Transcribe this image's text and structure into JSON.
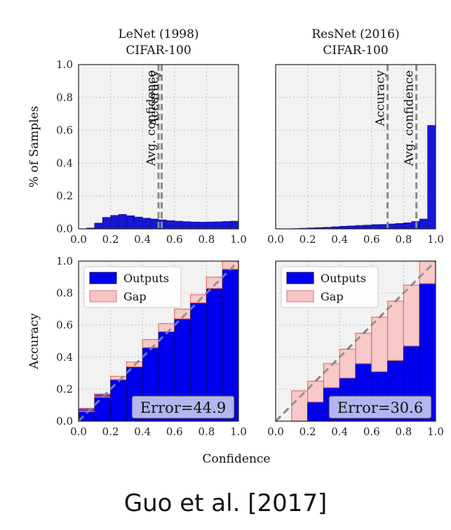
{
  "citation": "Guo et al. [2017]",
  "colors": {
    "outputs": "#0000ee",
    "gap_fill": "#f7c4c4",
    "gap_edge": "#e66e6e",
    "overlap": "#7e3fc0",
    "hist": "#1717d6",
    "diagonal": "#8a8a8a",
    "panel_bg": "#f2f2f2",
    "error_box": "#c8c8f0"
  },
  "chart_data": [
    {
      "type": "bar",
      "panel": "lenet-hist",
      "title": [
        "LeNet (1998)",
        "CIFAR-100"
      ],
      "ylabel": "% of Samples",
      "xlim": [
        0,
        1
      ],
      "ylim": [
        0,
        1
      ],
      "xticks": [
        "0.0",
        "0.2",
        "0.4",
        "0.6",
        "0.8",
        "1.0"
      ],
      "yticks": [
        "0.0",
        "0.2",
        "0.4",
        "0.6",
        "0.8",
        "1.0"
      ],
      "grid": true,
      "bin_width": 0.05,
      "bin_left_edges": [
        0.05,
        0.1,
        0.15,
        0.2,
        0.25,
        0.3,
        0.35,
        0.4,
        0.45,
        0.5,
        0.55,
        0.6,
        0.65,
        0.7,
        0.75,
        0.8,
        0.85,
        0.9,
        0.95
      ],
      "values": [
        0.005,
        0.035,
        0.07,
        0.082,
        0.088,
        0.08,
        0.072,
        0.065,
        0.06,
        0.055,
        0.05,
        0.047,
        0.044,
        0.042,
        0.041,
        0.042,
        0.043,
        0.045,
        0.047
      ],
      "reference_lines": [
        {
          "label": "Avg. confidence",
          "x": 0.5
        },
        {
          "label": "Accuracy",
          "x": 0.52
        }
      ]
    },
    {
      "type": "bar",
      "panel": "resnet-hist",
      "title": [
        "ResNet (2016)",
        "CIFAR-100"
      ],
      "xlim": [
        0,
        1
      ],
      "ylim": [
        0,
        1
      ],
      "xticks": [
        "0.0",
        "0.2",
        "0.4",
        "0.6",
        "0.8",
        "1.0"
      ],
      "grid": true,
      "bin_width": 0.05,
      "bin_left_edges": [
        0.1,
        0.15,
        0.2,
        0.25,
        0.3,
        0.35,
        0.4,
        0.45,
        0.5,
        0.55,
        0.6,
        0.65,
        0.7,
        0.75,
        0.8,
        0.85,
        0.9,
        0.95
      ],
      "values": [
        0.002,
        0.004,
        0.006,
        0.008,
        0.01,
        0.013,
        0.016,
        0.018,
        0.021,
        0.023,
        0.026,
        0.027,
        0.03,
        0.033,
        0.037,
        0.045,
        0.06,
        0.63
      ],
      "reference_lines": [
        {
          "label": "Accuracy",
          "x": 0.7
        },
        {
          "label": "Avg. confidence",
          "x": 0.88
        }
      ]
    },
    {
      "type": "bar",
      "panel": "lenet-reliability",
      "ylabel": "Accuracy",
      "xlim": [
        0,
        1
      ],
      "ylim": [
        0,
        1
      ],
      "xticks": [
        "0.0",
        "0.2",
        "0.4",
        "0.6",
        "0.8",
        "1.0"
      ],
      "yticks": [
        "0.0",
        "0.2",
        "0.4",
        "0.6",
        "0.8",
        "1.0"
      ],
      "grid": true,
      "legend": {
        "position": "top-left",
        "entries": [
          "Outputs",
          "Gap"
        ]
      },
      "bin_width": 0.1,
      "bin_left_edges": [
        0.0,
        0.1,
        0.2,
        0.3,
        0.4,
        0.5,
        0.6,
        0.7,
        0.8,
        0.9
      ],
      "outputs": [
        0.08,
        0.17,
        0.26,
        0.34,
        0.46,
        0.56,
        0.64,
        0.74,
        0.83,
        0.95
      ],
      "gap_top": [
        0.06,
        0.15,
        0.28,
        0.37,
        0.51,
        0.61,
        0.7,
        0.79,
        0.9,
        1.0
      ],
      "annotation": "Error=44.9"
    },
    {
      "type": "bar",
      "panel": "resnet-reliability",
      "xlim": [
        0,
        1
      ],
      "ylim": [
        0,
        1
      ],
      "xticks": [
        "0.0",
        "0.2",
        "0.4",
        "0.6",
        "0.8",
        "1.0"
      ],
      "grid": true,
      "legend": {
        "position": "top-left",
        "entries": [
          "Outputs",
          "Gap"
        ]
      },
      "bin_width": 0.1,
      "bin_left_edges": [
        0.1,
        0.2,
        0.3,
        0.4,
        0.5,
        0.6,
        0.7,
        0.8,
        0.9
      ],
      "outputs": [
        0.0,
        0.12,
        0.21,
        0.27,
        0.36,
        0.31,
        0.38,
        0.47,
        0.86
      ],
      "gap_top": [
        0.19,
        0.25,
        0.36,
        0.45,
        0.55,
        0.65,
        0.75,
        0.85,
        1.0
      ],
      "annotation": "Error=30.6"
    }
  ],
  "xlabel": "Confidence"
}
